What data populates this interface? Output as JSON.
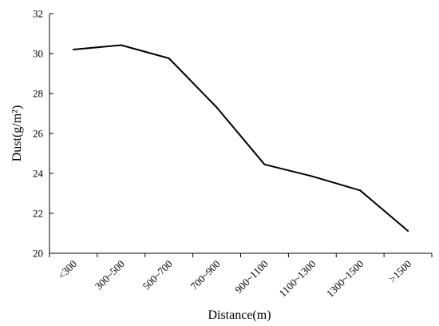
{
  "chart_data": {
    "type": "line",
    "title": "",
    "xlabel": "Distance(m)",
    "ylabel": "Dust(g/m²)",
    "categories": [
      "<300",
      "300~500",
      "500~700",
      "700~900",
      "900~1100",
      "1100~1300",
      "1300~1500",
      ">1500"
    ],
    "series": [
      {
        "values": [
          30.2,
          30.42,
          29.76,
          27.3,
          24.45,
          23.85,
          23.15,
          21.12
        ],
        "color": "#000000"
      }
    ],
    "ylim": [
      20,
      32
    ],
    "yticks": [
      20,
      22,
      24,
      26,
      28,
      30,
      32
    ],
    "grid": false,
    "legend": "none"
  }
}
